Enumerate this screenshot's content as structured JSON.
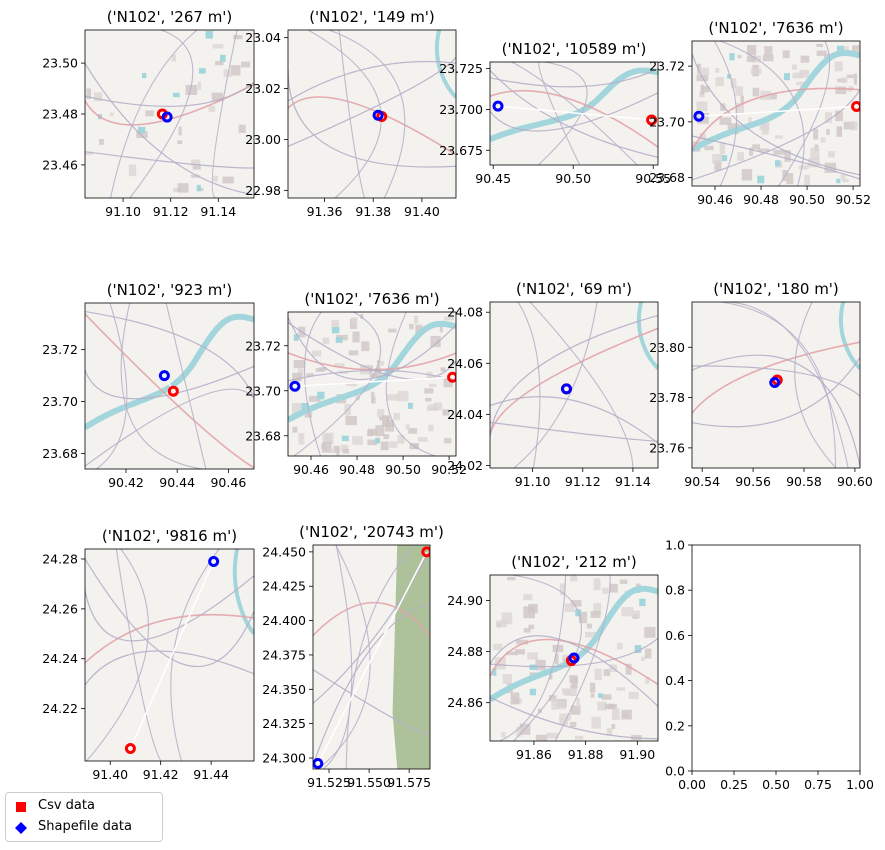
{
  "chart_data": [
    {
      "type": "scatter",
      "title": "('N102', '267 m')",
      "xlim": [
        91.084,
        91.155
      ],
      "ylim": [
        23.447,
        23.513
      ],
      "xticks": [
        91.1,
        91.12,
        91.14
      ],
      "yticks": [
        23.46,
        23.48,
        23.5
      ],
      "xticklabels": [
        "91.10",
        "91.12",
        "91.14"
      ],
      "yticklabels": [
        "23.46",
        "23.48",
        "23.50"
      ],
      "csv": [
        91.1165,
        23.48
      ],
      "shp": [
        91.1185,
        23.4788
      ],
      "map": "town"
    },
    {
      "type": "scatter",
      "title": "('N102', '149 m')",
      "xlim": [
        91.345,
        91.414
      ],
      "ylim": [
        22.977,
        23.043
      ],
      "xticks": [
        91.36,
        91.38,
        91.4
      ],
      "yticks": [
        22.98,
        23.0,
        23.02,
        23.04
      ],
      "xticklabels": [
        "91.36",
        "91.38",
        "91.40"
      ],
      "yticklabels": [
        "22.98",
        "23.00",
        "23.02",
        "23.04"
      ],
      "csv": [
        91.3835,
        23.009
      ],
      "shp": [
        91.382,
        23.0095
      ],
      "map": "rural"
    },
    {
      "type": "scatter",
      "title": "('N102', '10589 m')",
      "xlim": [
        90.448,
        90.553
      ],
      "ylim": [
        23.666,
        23.729
      ],
      "xticks": [
        90.45,
        90.5,
        90.55
      ],
      "yticks": [
        23.675,
        23.7,
        23.725
      ],
      "xticklabels": [
        "90.45",
        "90.50",
        "90.55"
      ],
      "yticklabels": [
        "23.675",
        "23.700",
        "23.725"
      ],
      "csv": [
        90.549,
        23.6935
      ],
      "shp": [
        90.453,
        23.702
      ],
      "map": "river"
    },
    {
      "type": "scatter",
      "title": "('N102', '7636 m')",
      "xlim": [
        90.45,
        90.523
      ],
      "ylim": [
        23.677,
        23.729
      ],
      "xticks": [
        90.46,
        90.48,
        90.5,
        90.52
      ],
      "yticks": [
        23.68,
        23.7,
        23.72
      ],
      "xticklabels": [
        "90.46",
        "90.48",
        "90.50",
        "90.52"
      ],
      "yticklabels": [
        "23.68",
        "23.70",
        "23.72"
      ],
      "csv": [
        90.5215,
        23.7055
      ],
      "shp": [
        90.453,
        23.702
      ],
      "map": "city"
    },
    {
      "type": "scatter",
      "title": "('N102', '923 m')",
      "xlim": [
        90.404,
        90.47
      ],
      "ylim": [
        23.674,
        23.738
      ],
      "xticks": [
        90.42,
        90.44,
        90.46
      ],
      "yticks": [
        23.68,
        23.7,
        23.72
      ],
      "xticklabels": [
        "90.42",
        "90.44",
        "90.46"
      ],
      "yticklabels": [
        "23.68",
        "23.70",
        "23.72"
      ],
      "csv": [
        90.4385,
        23.704
      ],
      "shp": [
        90.435,
        23.71
      ],
      "map": "river"
    },
    {
      "type": "scatter",
      "title": "('N102', '7636 m')",
      "xlim": [
        90.45,
        90.523
      ],
      "ylim": [
        23.671,
        23.735
      ],
      "xticks": [
        90.46,
        90.48,
        90.5,
        90.52
      ],
      "yticks": [
        23.68,
        23.7,
        23.72
      ],
      "xticklabels": [
        "90.46",
        "90.48",
        "90.50",
        "90.52"
      ],
      "yticklabels": [
        "23.68",
        "23.70",
        "23.72"
      ],
      "csv": [
        90.5215,
        23.706
      ],
      "shp": [
        90.453,
        23.702
      ],
      "map": "city"
    },
    {
      "type": "scatter",
      "title": "('N102', '69 m')",
      "xlim": [
        91.083,
        91.15
      ],
      "ylim": [
        24.019,
        24.084
      ],
      "xticks": [
        91.1,
        91.12,
        91.14
      ],
      "yticks": [
        24.02,
        24.04,
        24.06,
        24.08
      ],
      "xticklabels": [
        "91.10",
        "91.12",
        "91.14"
      ],
      "yticklabels": [
        "24.02",
        "24.04",
        "24.06",
        "24.08"
      ],
      "csv": [
        91.1135,
        24.05
      ],
      "shp": [
        91.1135,
        24.05
      ],
      "map": "rural"
    },
    {
      "type": "scatter",
      "title": "('N102', '180 m')",
      "xlim": [
        90.536,
        90.602
      ],
      "ylim": [
        23.752,
        23.818
      ],
      "xticks": [
        90.54,
        90.56,
        90.58,
        90.6
      ],
      "yticks": [
        23.76,
        23.78,
        23.8
      ],
      "xticklabels": [
        "90.54",
        "90.56",
        "90.58",
        "90.60"
      ],
      "yticklabels": [
        "23.76",
        "23.78",
        "23.80"
      ],
      "csv": [
        90.5695,
        23.787
      ],
      "shp": [
        90.5685,
        23.786
      ],
      "map": "rural"
    },
    {
      "type": "scatter",
      "title": "('N102', '9816 m')",
      "xlim": [
        91.39,
        91.457
      ],
      "ylim": [
        24.199,
        24.284
      ],
      "xticks": [
        91.4,
        91.42,
        91.44
      ],
      "yticks": [
        24.22,
        24.24,
        24.26,
        24.28
      ],
      "xticklabels": [
        "91.40",
        "91.42",
        "91.44"
      ],
      "yticklabels": [
        "24.22",
        "24.24",
        "24.26",
        "24.28"
      ],
      "csv": [
        91.408,
        24.204
      ],
      "shp": [
        91.441,
        24.279
      ],
      "map": "rural"
    },
    {
      "type": "scatter",
      "title": "('N102', '20743 m')",
      "xlim": [
        91.515,
        91.588
      ],
      "ylim": [
        24.292,
        24.455
      ],
      "xticks": [
        91.525,
        91.55,
        91.575
      ],
      "yticks": [
        24.3,
        24.325,
        24.35,
        24.375,
        24.4,
        24.425,
        24.45
      ],
      "xticklabels": [
        "91.525",
        "91.550",
        "91.575"
      ],
      "yticklabels": [
        "24.300",
        "24.325",
        "24.350",
        "24.375",
        "24.400",
        "24.425",
        "24.450"
      ],
      "csv": [
        91.586,
        24.45
      ],
      "shp": [
        91.518,
        24.296
      ],
      "map": "forest"
    },
    {
      "type": "scatter",
      "title": "('N102', '212 m')",
      "xlim": [
        91.843,
        91.908
      ],
      "ylim": [
        24.845,
        24.91
      ],
      "xticks": [
        91.86,
        91.88,
        91.9
      ],
      "yticks": [
        24.86,
        24.88,
        24.9
      ],
      "xticklabels": [
        "91.86",
        "91.88",
        "91.90"
      ],
      "yticklabels": [
        "24.86",
        "24.88",
        "24.90"
      ],
      "csv": [
        91.8745,
        24.8765
      ],
      "shp": [
        91.8755,
        24.8775
      ],
      "map": "city"
    },
    {
      "type": "empty",
      "title": "",
      "xlim": [
        0,
        1
      ],
      "ylim": [
        0,
        1
      ],
      "xticks": [
        0,
        0.25,
        0.5,
        0.75,
        1.0
      ],
      "yticks": [
        0,
        0.2,
        0.4,
        0.6,
        0.8,
        1.0
      ],
      "xticklabels": [
        "0.00",
        "0.25",
        "0.50",
        "0.75",
        "1.00"
      ],
      "yticklabels": [
        "0.0",
        "0.2",
        "0.4",
        "0.6",
        "0.8",
        "1.0"
      ]
    }
  ],
  "legend": {
    "csv_label": "Csv data",
    "shp_label": "Shapefile data",
    "csv_color": "#ff0000",
    "shp_color": "#0000ff",
    "line_color": "#ffffff"
  },
  "colors": {
    "map_bg": "#f3f2ee",
    "water": "#a3d6dc",
    "road": "#b6aec8",
    "main_road": "#e4a3a8",
    "forest": "#adc19a",
    "urban": "#dcd5d5",
    "urban_block": "#cfc5c5"
  }
}
